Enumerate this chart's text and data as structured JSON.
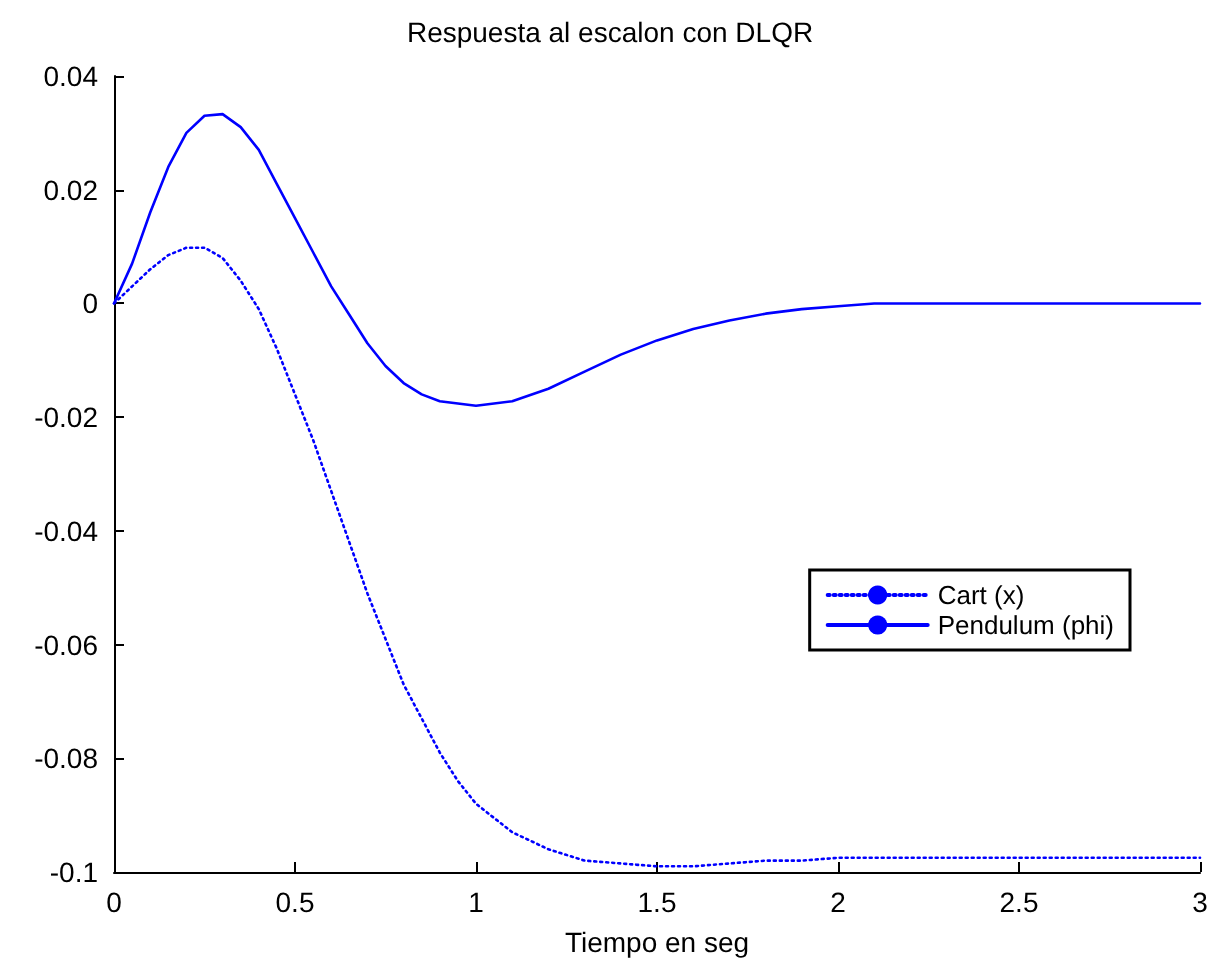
{
  "chart_data": {
    "type": "line",
    "title": "Respuesta al escalon con DLQR",
    "xlabel": "Tiempo en seg",
    "xlim": [
      0,
      3
    ],
    "xticks": [
      0,
      0.5,
      1,
      1.5,
      2,
      2.5,
      3
    ],
    "ylim": [
      -0.1,
      0.04
    ],
    "yticks": [
      -0.1,
      -0.08,
      -0.06,
      -0.04,
      -0.02,
      0,
      0.02,
      0.04
    ],
    "grid": false,
    "legend": "right",
    "marker": "none",
    "series": [
      {
        "name": "Cart (x)",
        "color": "#0000ff",
        "line_style": "dotted",
        "x": [
          0,
          0.05,
          0.1,
          0.15,
          0.2,
          0.25,
          0.3,
          0.35,
          0.4,
          0.45,
          0.5,
          0.55,
          0.6,
          0.65,
          0.7,
          0.75,
          0.8,
          0.85,
          0.9,
          0.95,
          1.0,
          1.1,
          1.2,
          1.3,
          1.4,
          1.5,
          1.6,
          1.7,
          1.8,
          1.9,
          2.0,
          3.0
        ],
        "values": [
          0,
          0.003,
          0.006,
          0.0085,
          0.0098,
          0.0098,
          0.008,
          0.004,
          -0.001,
          -0.008,
          -0.016,
          -0.024,
          -0.033,
          -0.042,
          -0.051,
          -0.059,
          -0.067,
          -0.073,
          -0.079,
          -0.084,
          -0.088,
          -0.093,
          -0.096,
          -0.098,
          -0.0985,
          -0.099,
          -0.099,
          -0.0985,
          -0.098,
          -0.098,
          -0.0975,
          -0.0975
        ]
      },
      {
        "name": "Pendulum (phi)",
        "color": "#0000ff",
        "line_style": "solid",
        "x": [
          0,
          0.05,
          0.1,
          0.15,
          0.2,
          0.25,
          0.3,
          0.35,
          0.4,
          0.45,
          0.5,
          0.55,
          0.6,
          0.65,
          0.7,
          0.75,
          0.8,
          0.85,
          0.9,
          1.0,
          1.1,
          1.2,
          1.3,
          1.4,
          1.5,
          1.6,
          1.7,
          1.8,
          1.9,
          2.0,
          2.1,
          3.0
        ],
        "values": [
          0,
          0.007,
          0.016,
          0.024,
          0.03,
          0.033,
          0.0333,
          0.031,
          0.027,
          0.021,
          0.015,
          0.009,
          0.003,
          -0.002,
          -0.007,
          -0.011,
          -0.014,
          -0.016,
          -0.0172,
          -0.018,
          -0.0172,
          -0.015,
          -0.012,
          -0.009,
          -0.0065,
          -0.0045,
          -0.003,
          -0.0018,
          -0.001,
          -0.0005,
          0,
          0
        ]
      }
    ]
  }
}
